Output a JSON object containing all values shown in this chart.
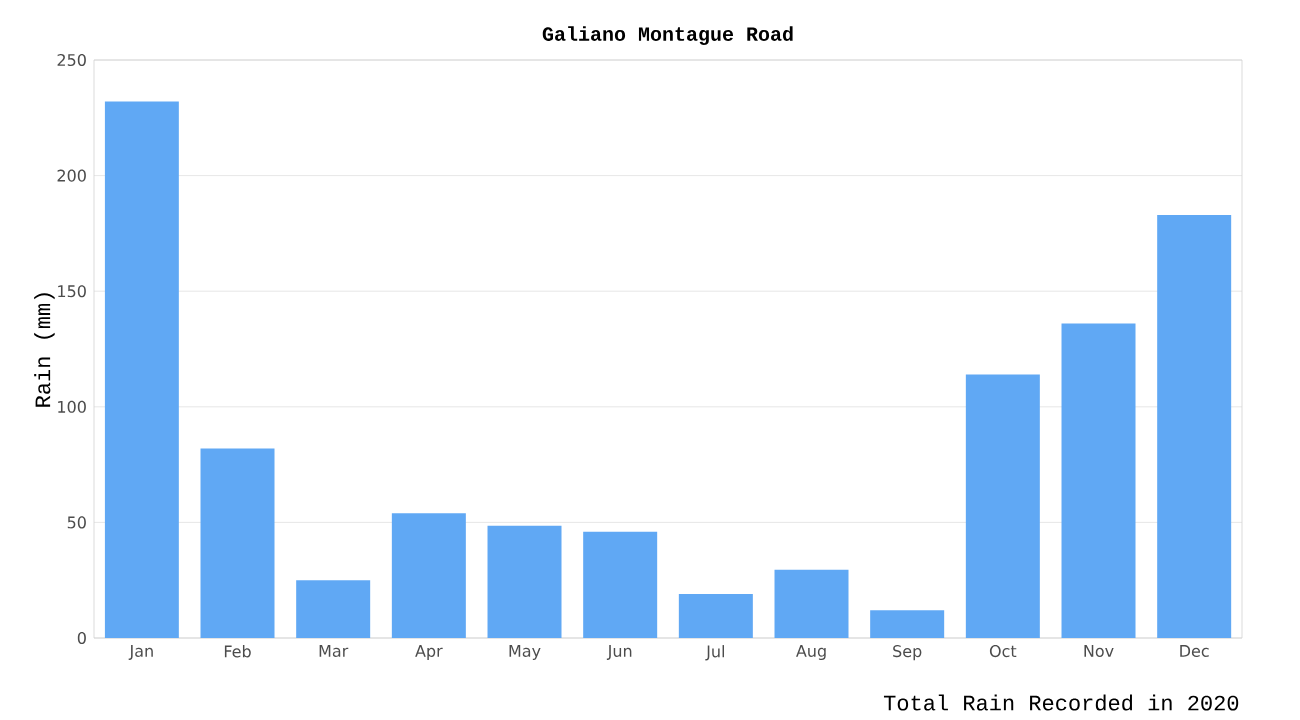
{
  "chart_data": {
    "type": "bar",
    "title": "Galiano Montague Road",
    "ylabel": "Rain (mm)",
    "categories": [
      "Jan",
      "Feb",
      "Mar",
      "Apr",
      "May",
      "Jun",
      "Jul",
      "Aug",
      "Sep",
      "Oct",
      "Nov",
      "Dec"
    ],
    "values": [
      232,
      82,
      25,
      54,
      48.5,
      46,
      19,
      29.5,
      12,
      114,
      136,
      183
    ],
    "color": "#60a8f4",
    "ylim": [
      0,
      250
    ],
    "yticks": [
      0,
      50,
      100,
      150,
      200,
      250
    ],
    "grid": "y",
    "annotations": [
      "Total Rain Recorded in 2020"
    ]
  }
}
